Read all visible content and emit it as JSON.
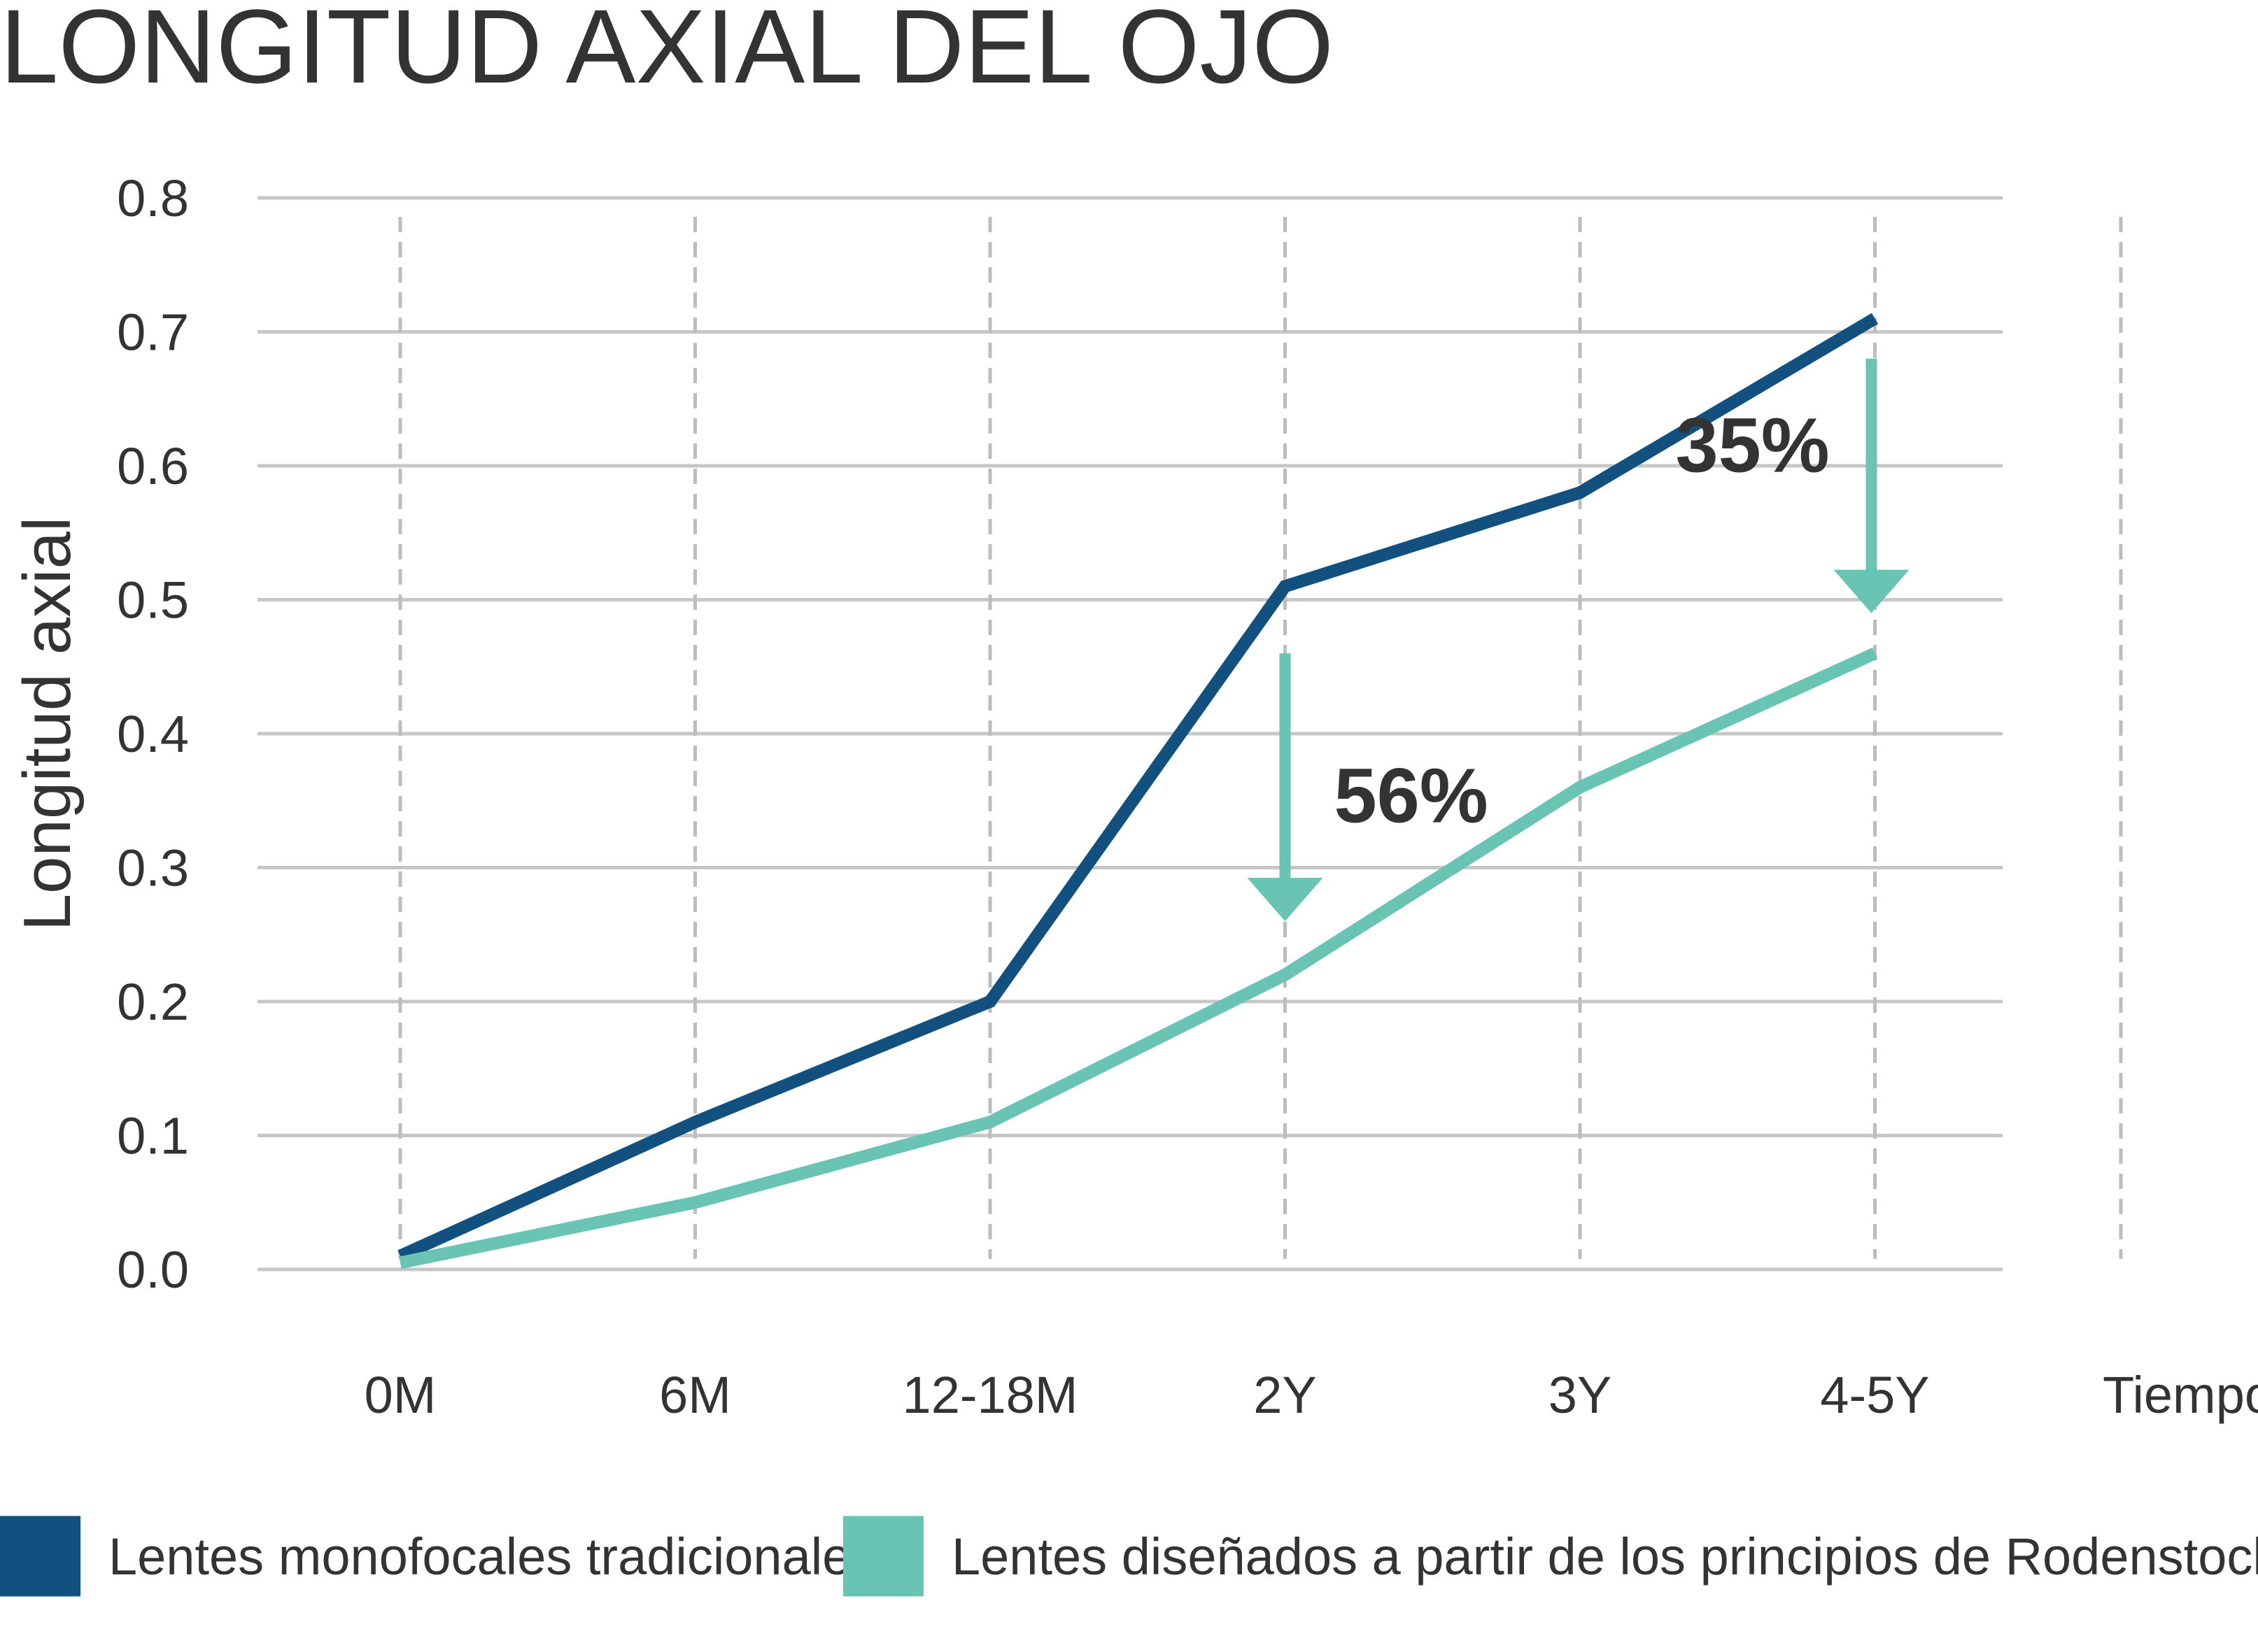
{
  "chart_data": {
    "type": "line",
    "title": "LONGITUD AXIAL DEL OJO",
    "xlabel": "Tiempo",
    "ylabel": "Longitud axial",
    "categories": [
      "0M",
      "6M",
      "12-18M",
      "2Y",
      "3Y",
      "4-5Y"
    ],
    "ylim": [
      0,
      0.8
    ],
    "yticks": [
      "0.0",
      "0.1",
      "0.2",
      "0.3",
      "0.4",
      "0.5",
      "0.6",
      "0.7",
      "0.8"
    ],
    "grid": true,
    "legend_position": "bottom",
    "series": [
      {
        "name": "Lentes monofocales tradicionales",
        "color": "#12517f",
        "values": [
          0.01,
          0.11,
          0.2,
          0.51,
          0.58,
          0.71
        ]
      },
      {
        "name": "Lentes diseñados a partir de los principios de Rodenstock MyCon",
        "color": "#6ac4b4",
        "values": [
          0.005,
          0.05,
          0.11,
          0.22,
          0.36,
          0.46
        ]
      }
    ],
    "annotations": [
      {
        "label": "56%",
        "category": "2Y",
        "from": 0.46,
        "to": 0.26
      },
      {
        "label": "35%",
        "category": "4-5Y",
        "from": 0.68,
        "to": 0.49
      }
    ],
    "annotation_color": "#6ac4b4"
  }
}
